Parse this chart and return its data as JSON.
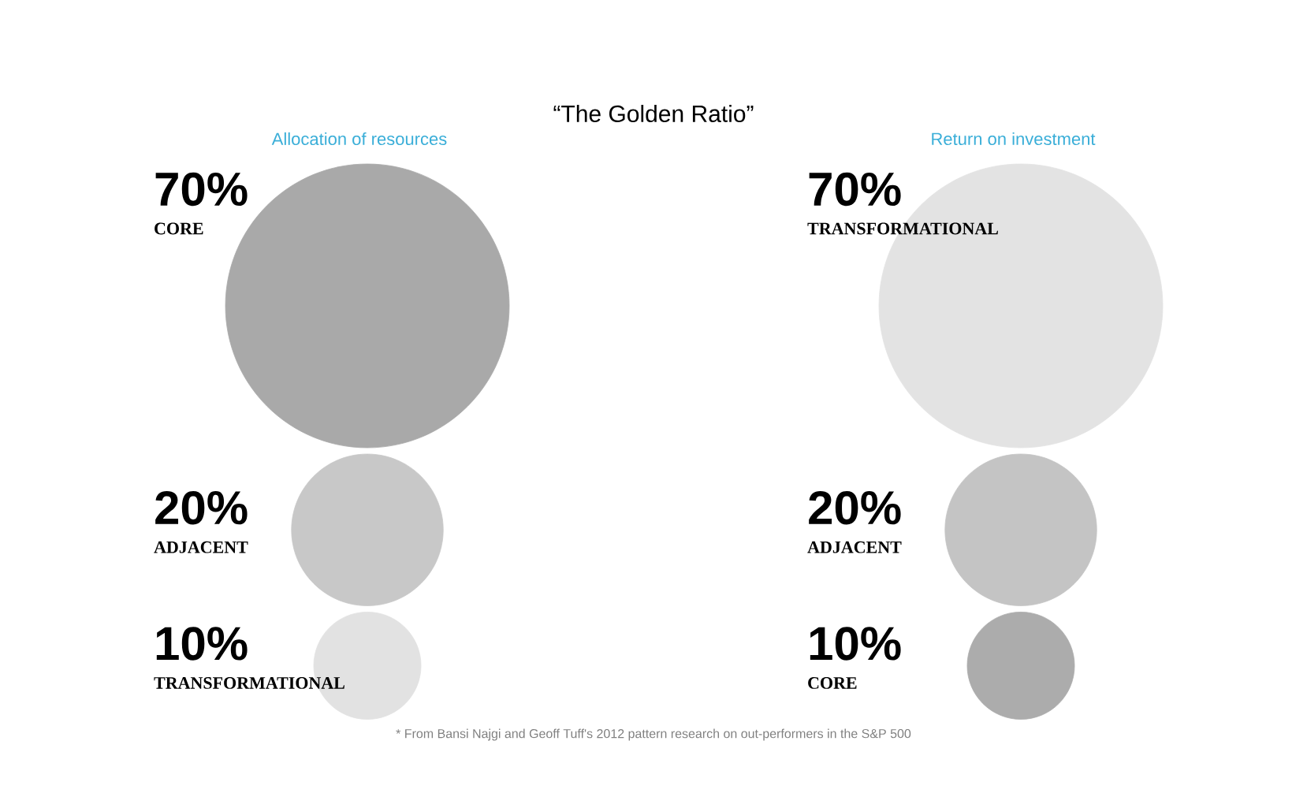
{
  "chart_data": [
    {
      "type": "other",
      "title": "“The Golden Ratio”",
      "subtitle": "Allocation of resources",
      "categories": [
        "CORE",
        "ADJACENT",
        "TRANSFORMATIONAL"
      ],
      "values": [
        70,
        20,
        10
      ],
      "value_labels": [
        "70%",
        "20%",
        "10%"
      ],
      "colors": [
        "#a9a9a9",
        "#c8c8c8",
        "#e2e2e2"
      ],
      "annotations": [
        "* From Bansi Najgi and Geoff Tuff's 2012 pattern research on out-performers in the S&P 500"
      ]
    },
    {
      "type": "other",
      "subtitle": "Return on investment",
      "categories": [
        "TRANSFORMATIONAL",
        "ADJACENT",
        "CORE"
      ],
      "values": [
        70,
        20,
        10
      ],
      "value_labels": [
        "70%",
        "20%",
        "10%"
      ],
      "colors": [
        "#e3e3e3",
        "#c4c4c4",
        "#acacac"
      ]
    }
  ]
}
